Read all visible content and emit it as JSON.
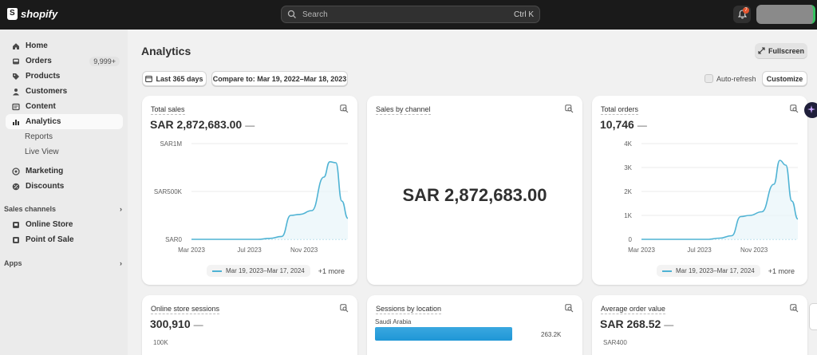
{
  "topbar": {
    "logo_text": "shopify",
    "search_placeholder": "Search",
    "search_shortcut": "Ctrl K",
    "notification_count": "7"
  },
  "sidebar": {
    "items": [
      {
        "label": "Home",
        "icon": "home-icon"
      },
      {
        "label": "Orders",
        "icon": "inbox-icon",
        "badge": "9,999+"
      },
      {
        "label": "Products",
        "icon": "tag-icon"
      },
      {
        "label": "Customers",
        "icon": "person-icon"
      },
      {
        "label": "Content",
        "icon": "content-icon"
      },
      {
        "label": "Analytics",
        "icon": "analytics-icon",
        "active": true
      },
      {
        "label": "Reports",
        "sub": true
      },
      {
        "label": "Live View",
        "sub": true
      },
      {
        "label": "Marketing",
        "icon": "target-icon"
      },
      {
        "label": "Discounts",
        "icon": "discount-icon"
      }
    ],
    "sales_channels_label": "Sales channels",
    "channels": [
      {
        "label": "Online Store",
        "icon": "store-icon"
      },
      {
        "label": "Point of Sale",
        "icon": "pos-icon"
      }
    ],
    "apps_label": "Apps"
  },
  "page": {
    "title": "Analytics",
    "fullscreen_label": "Fullscreen",
    "date_range_label": "Last 365 days",
    "compare_label": "Compare to: Mar 19, 2022–Mar 18, 2023",
    "auto_refresh_label": "Auto-refresh",
    "customize_label": "Customize"
  },
  "cards": {
    "total_sales": {
      "title": "Total sales",
      "value": "SAR 2,872,683.00",
      "dash": "—",
      "legend_label": "Mar 19, 2023–Mar 17, 2024",
      "legend_more": "+1 more"
    },
    "sales_by_channel": {
      "title": "Sales by channel",
      "value": "SAR 2,872,683.00"
    },
    "total_orders": {
      "title": "Total orders",
      "value": "10,746",
      "dash": "—",
      "legend_label": "Mar 19, 2023–Mar 17, 2024",
      "legend_more": "+1 more"
    },
    "online_sessions": {
      "title": "Online store sessions",
      "value": "300,910",
      "dash": "—",
      "tick": "100K"
    },
    "sessions_by_location": {
      "title": "Sessions by location",
      "location": "Saudi Arabia",
      "location_value": "263.2K",
      "location_fraction": 0.86
    },
    "avg_order_value": {
      "title": "Average order value",
      "value": "SAR 268.52",
      "dash": "—",
      "tick": "SAR400"
    }
  },
  "chart_data": [
    {
      "type": "line",
      "title": "Total sales",
      "y_ticks": [
        "SAR1M",
        "SAR500K",
        "SAR0"
      ],
      "x_ticks": [
        "Mar 2023",
        "Jul 2023",
        "Nov 2023"
      ],
      "ylim": [
        0,
        1000000
      ],
      "series": [
        {
          "name": "Mar 19, 2023–Mar 17, 2024",
          "x": [
            0,
            5,
            10,
            15,
            18,
            22,
            26,
            30,
            33,
            36,
            40,
            44,
            46,
            48,
            50,
            52
          ],
          "values": [
            0,
            0,
            0,
            0,
            0,
            0,
            10000,
            30000,
            250000,
            260000,
            300000,
            650000,
            810000,
            800000,
            400000,
            220000
          ],
          "color": "#4fb3d4"
        }
      ],
      "grid": true
    },
    {
      "type": "line",
      "title": "Total orders",
      "y_ticks": [
        "4K",
        "3K",
        "2K",
        "1K",
        "0"
      ],
      "x_ticks": [
        "Mar 2023",
        "Jul 2023",
        "Nov 2023"
      ],
      "ylim": [
        0,
        4000
      ],
      "series": [
        {
          "name": "Mar 19, 2023–Mar 17, 2024",
          "x": [
            0,
            5,
            10,
            15,
            18,
            22,
            26,
            30,
            33,
            36,
            40,
            44,
            46,
            48,
            50,
            52
          ],
          "values": [
            0,
            0,
            0,
            0,
            0,
            0,
            50,
            150,
            950,
            1000,
            1150,
            2300,
            3300,
            3100,
            1600,
            850
          ],
          "color": "#4fb3d4"
        }
      ],
      "grid": true
    }
  ]
}
